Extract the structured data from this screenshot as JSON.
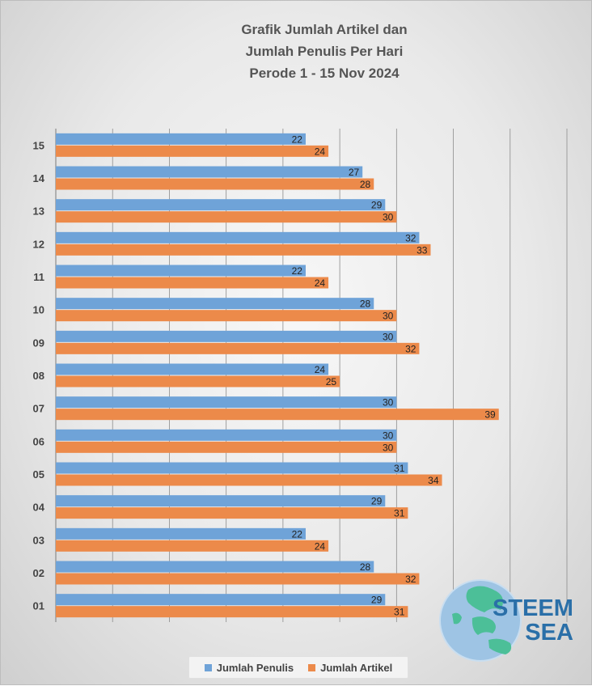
{
  "colors": {
    "jumlah_penulis": "#6fa3d8",
    "jumlah_artikel": "#ec8a4a",
    "grid": "#8c8c8c",
    "logo_blue": "#2a6fa8",
    "logo_teal": "#4cbf98"
  },
  "chart_data": {
    "type": "bar",
    "orientation": "horizontal",
    "title": [
      "Grafik Jumlah Artikel dan",
      "Jumlah Penulis Per Hari",
      "Perode 1 - 15 Nov 2024"
    ],
    "categories": [
      "01",
      "02",
      "03",
      "04",
      "05",
      "06",
      "07",
      "08",
      "09",
      "10",
      "11",
      "12",
      "13",
      "14",
      "15"
    ],
    "series": [
      {
        "name": "Jumlah Penulis",
        "values": [
          29,
          28,
          22,
          29,
          31,
          30,
          30,
          24,
          30,
          28,
          22,
          32,
          29,
          27,
          22
        ]
      },
      {
        "name": "Jumlah Artikel",
        "values": [
          31,
          32,
          24,
          31,
          34,
          30,
          39,
          25,
          32,
          30,
          24,
          33,
          30,
          28,
          24
        ]
      }
    ],
    "xlim": [
      0,
      45
    ],
    "grid": true,
    "data_labels": true,
    "legend_position": "bottom"
  },
  "logo": {
    "line1": "STEEM",
    "line2": "SEA",
    "icon": "globe-icon"
  }
}
